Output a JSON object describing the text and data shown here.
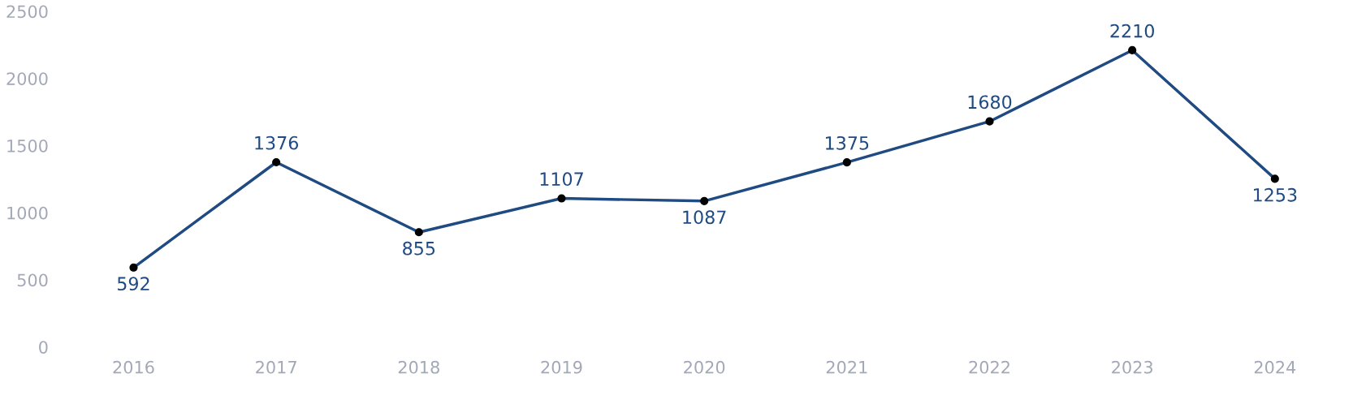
{
  "chart_data": {
    "type": "line",
    "categories": [
      "2016",
      "2017",
      "2018",
      "2019",
      "2020",
      "2021",
      "2022",
      "2023",
      "2024"
    ],
    "series": [
      {
        "color": "#1f4a82",
        "values": [
          592,
          1376,
          855,
          1107,
          1087,
          1375,
          1680,
          2210,
          1253
        ]
      }
    ],
    "ylim": [
      0,
      2500
    ],
    "yticks": [
      0,
      500,
      1000,
      1500,
      2000,
      2500
    ],
    "marker": "circle",
    "line_style": "solid",
    "data_labels": true,
    "grid": false,
    "legend": false
  }
}
